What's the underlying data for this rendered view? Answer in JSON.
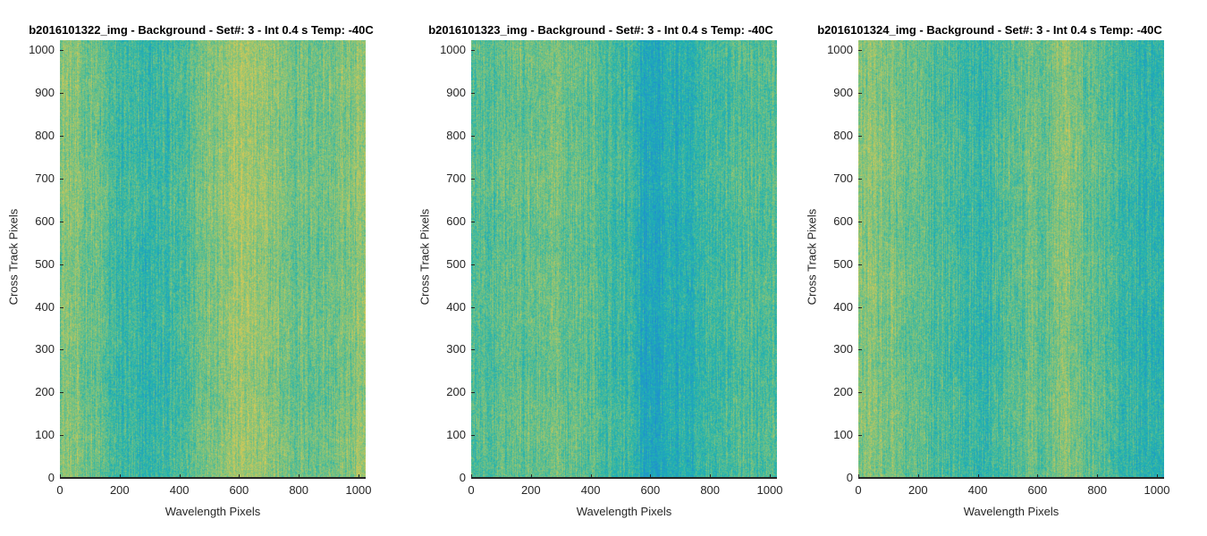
{
  "chart_data": [
    {
      "type": "heatmap",
      "title": "b2016101322_img - Background - Set#: 3 - Int 0.4 s Temp: -40C",
      "xlabel": "Wavelength Pixels",
      "ylabel": "Cross Track Pixels",
      "xlim": [
        0,
        1024
      ],
      "ylim": [
        0,
        1024
      ],
      "xticks": [
        0,
        200,
        400,
        600,
        800,
        1000
      ],
      "yticks": [
        0,
        100,
        200,
        300,
        400,
        500,
        600,
        700,
        800,
        900,
        1000
      ],
      "colormap": [
        "#1f8fcf",
        "#20b3b0",
        "#7cc27e",
        "#d7c955"
      ],
      "column_profile": [
        {
          "x": 0,
          "level": 0.72
        },
        {
          "x": 100,
          "level": 0.62
        },
        {
          "x": 200,
          "level": 0.42
        },
        {
          "x": 300,
          "level": 0.38
        },
        {
          "x": 400,
          "level": 0.45
        },
        {
          "x": 500,
          "level": 0.7
        },
        {
          "x": 600,
          "level": 0.8
        },
        {
          "x": 700,
          "level": 0.72
        },
        {
          "x": 800,
          "level": 0.62
        },
        {
          "x": 900,
          "level": 0.62
        },
        {
          "x": 1024,
          "level": 0.72
        }
      ]
    },
    {
      "type": "heatmap",
      "title": "b2016101323_img - Background - Set#: 3 - Int 0.4 s Temp: -40C",
      "xlabel": "Wavelength Pixels",
      "ylabel": "Cross Track Pixels",
      "xlim": [
        0,
        1024
      ],
      "ylim": [
        0,
        1024
      ],
      "xticks": [
        0,
        200,
        400,
        600,
        800,
        1000
      ],
      "yticks": [
        0,
        100,
        200,
        300,
        400,
        500,
        600,
        700,
        800,
        900,
        1000
      ],
      "colormap": [
        "#1f8fcf",
        "#20b3b0",
        "#7cc27e",
        "#d7c955"
      ],
      "column_profile": [
        {
          "x": 0,
          "level": 0.5
        },
        {
          "x": 100,
          "level": 0.55
        },
        {
          "x": 200,
          "level": 0.58
        },
        {
          "x": 300,
          "level": 0.62
        },
        {
          "x": 400,
          "level": 0.55
        },
        {
          "x": 500,
          "level": 0.45
        },
        {
          "x": 600,
          "level": 0.22
        },
        {
          "x": 700,
          "level": 0.3
        },
        {
          "x": 800,
          "level": 0.45
        },
        {
          "x": 900,
          "level": 0.5
        },
        {
          "x": 1024,
          "level": 0.48
        }
      ]
    },
    {
      "type": "heatmap",
      "title": "b2016101324_img - Background - Set#: 3 - Int 0.4 s Temp: -40C",
      "xlabel": "Wavelength Pixels",
      "ylabel": "Cross Track Pixels",
      "xlim": [
        0,
        1024
      ],
      "ylim": [
        0,
        1024
      ],
      "xticks": [
        0,
        200,
        400,
        600,
        800,
        1000
      ],
      "yticks": [
        0,
        100,
        200,
        300,
        400,
        500,
        600,
        700,
        800,
        900,
        1000
      ],
      "colormap": [
        "#1f8fcf",
        "#20b3b0",
        "#7cc27e",
        "#d7c955"
      ],
      "column_profile": [
        {
          "x": 0,
          "level": 0.7
        },
        {
          "x": 100,
          "level": 0.68
        },
        {
          "x": 200,
          "level": 0.55
        },
        {
          "x": 300,
          "level": 0.48
        },
        {
          "x": 400,
          "level": 0.4
        },
        {
          "x": 500,
          "level": 0.5
        },
        {
          "x": 600,
          "level": 0.6
        },
        {
          "x": 700,
          "level": 0.72
        },
        {
          "x": 800,
          "level": 0.55
        },
        {
          "x": 900,
          "level": 0.4
        },
        {
          "x": 1024,
          "level": 0.35
        }
      ]
    }
  ]
}
